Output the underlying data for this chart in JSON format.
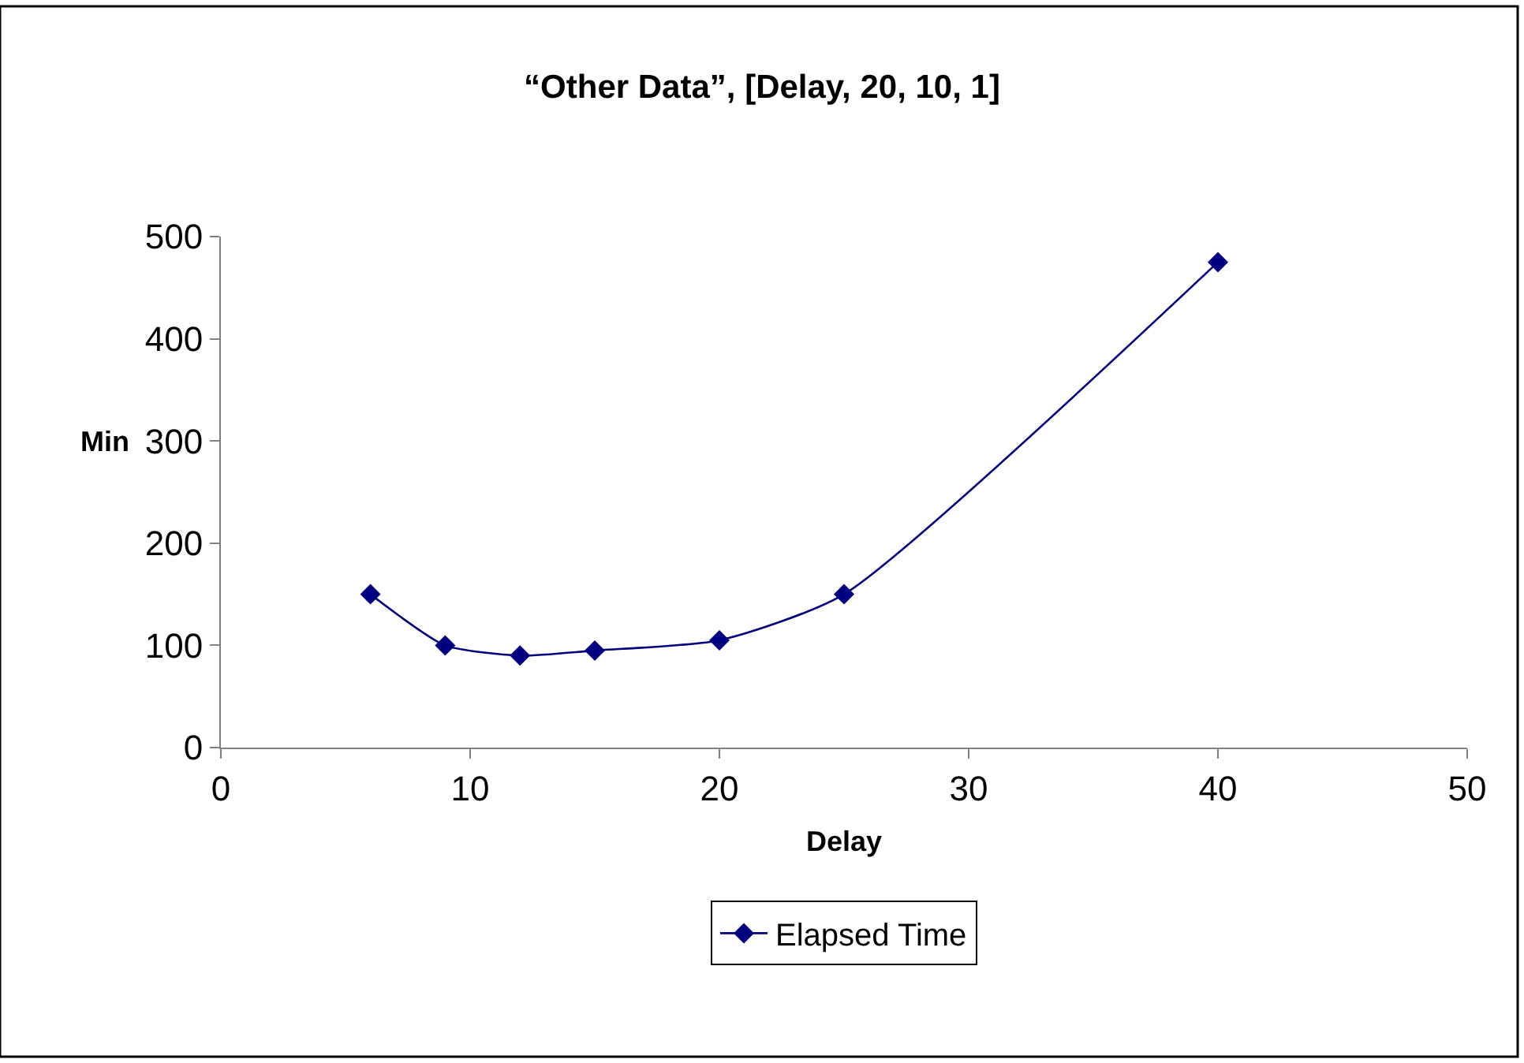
{
  "chart_data": {
    "type": "line",
    "title": "“Other Data”, [Delay, 20, 10, 1]",
    "xlabel": "Delay",
    "ylabel": "Min",
    "x": [
      6,
      9,
      12,
      15,
      20,
      25,
      40
    ],
    "series": [
      {
        "name": "Elapsed Time",
        "color": "#000080",
        "values": [
          150,
          100,
          90,
          95,
          105,
          150,
          475
        ]
      }
    ],
    "xlim": [
      0,
      50
    ],
    "xticks": [
      0,
      10,
      20,
      30,
      40,
      50
    ],
    "ylim": [
      0,
      500
    ],
    "yticks": [
      0,
      100,
      200,
      300,
      400,
      500
    ],
    "legend": "bottom",
    "marker": "diamond",
    "line_style": "solid"
  }
}
